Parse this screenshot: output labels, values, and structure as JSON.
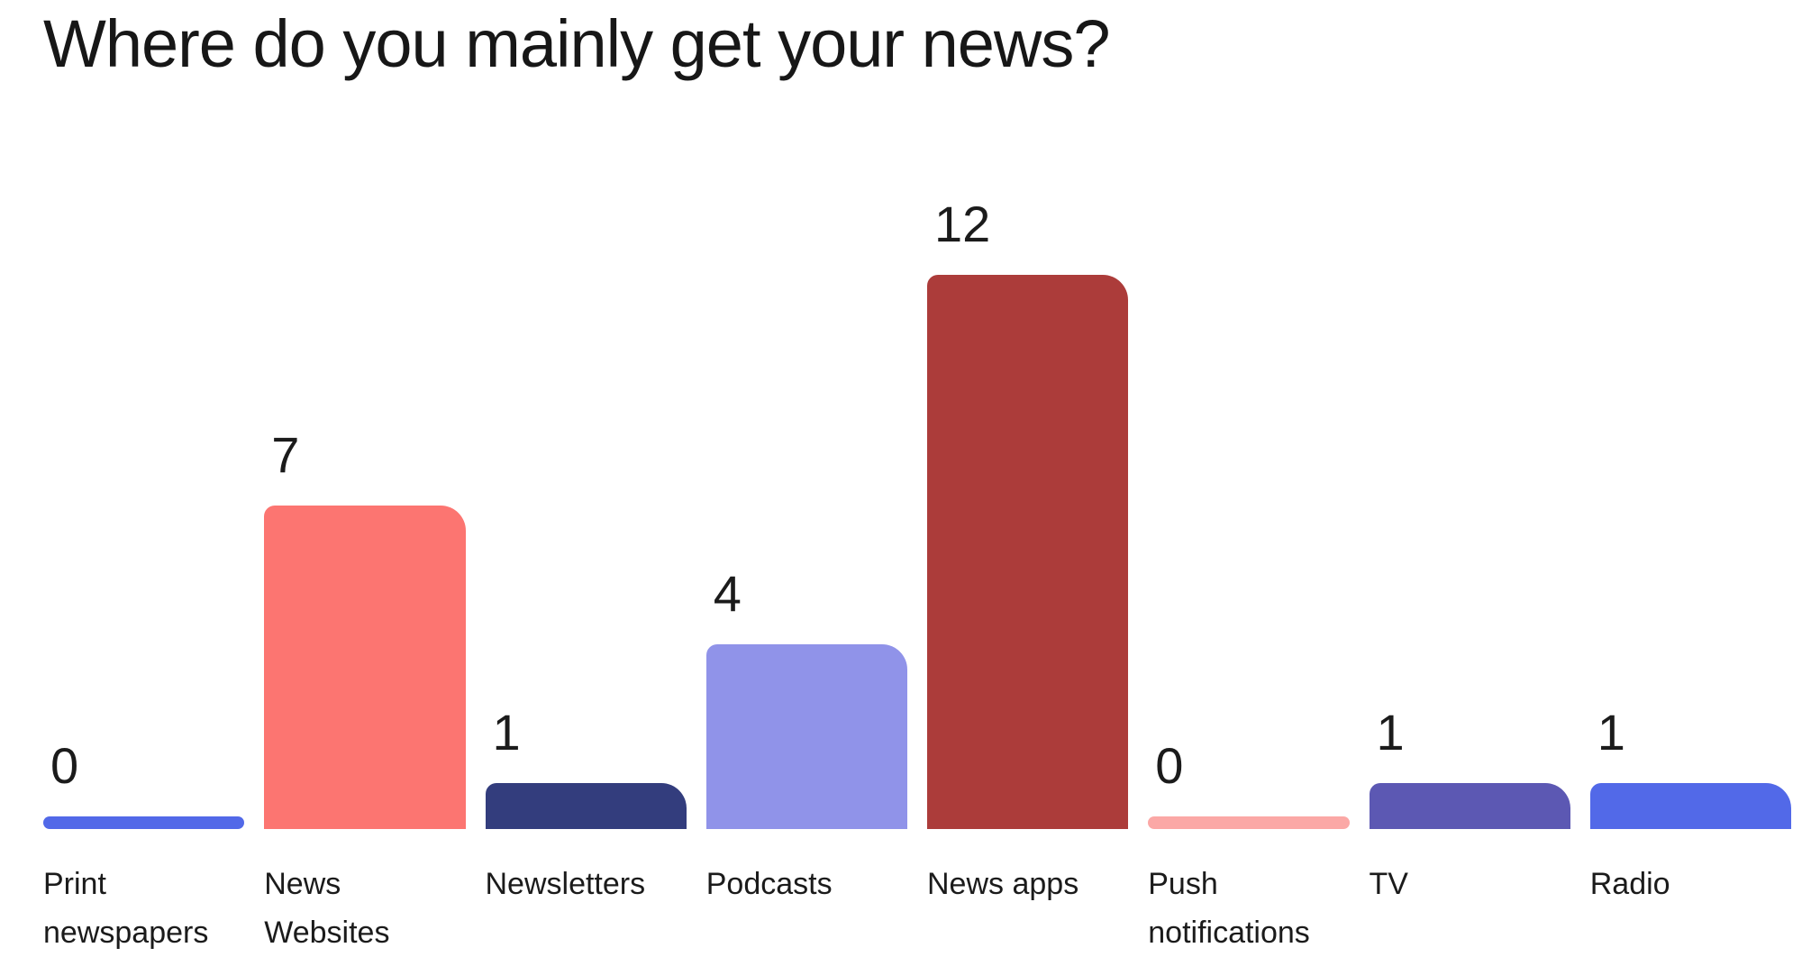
{
  "title": "Where do you mainly get your news?",
  "chart_data": {
    "type": "bar",
    "title": "Where do you mainly get your news?",
    "categories": [
      "Print newspapers",
      "News Websites",
      "Newsletters",
      "Podcasts",
      "News apps",
      "Push notifications",
      "TV",
      "Radio"
    ],
    "values": [
      0,
      7,
      1,
      4,
      12,
      0,
      1,
      1
    ],
    "bar_colors": [
      "#5269E8",
      "#FC7571",
      "#333D7D",
      "#9093E9",
      "#AC3C3A",
      "#FBA8A6",
      "#5C58B3",
      "#5269E8"
    ],
    "xlabel": "",
    "ylabel": "",
    "ylim": [
      0,
      12
    ],
    "grid": false,
    "legend": "none",
    "value_labels": "above-bars",
    "axis_ticks": "none",
    "background": "#ffffff",
    "text_color": "#1b1b1b"
  }
}
